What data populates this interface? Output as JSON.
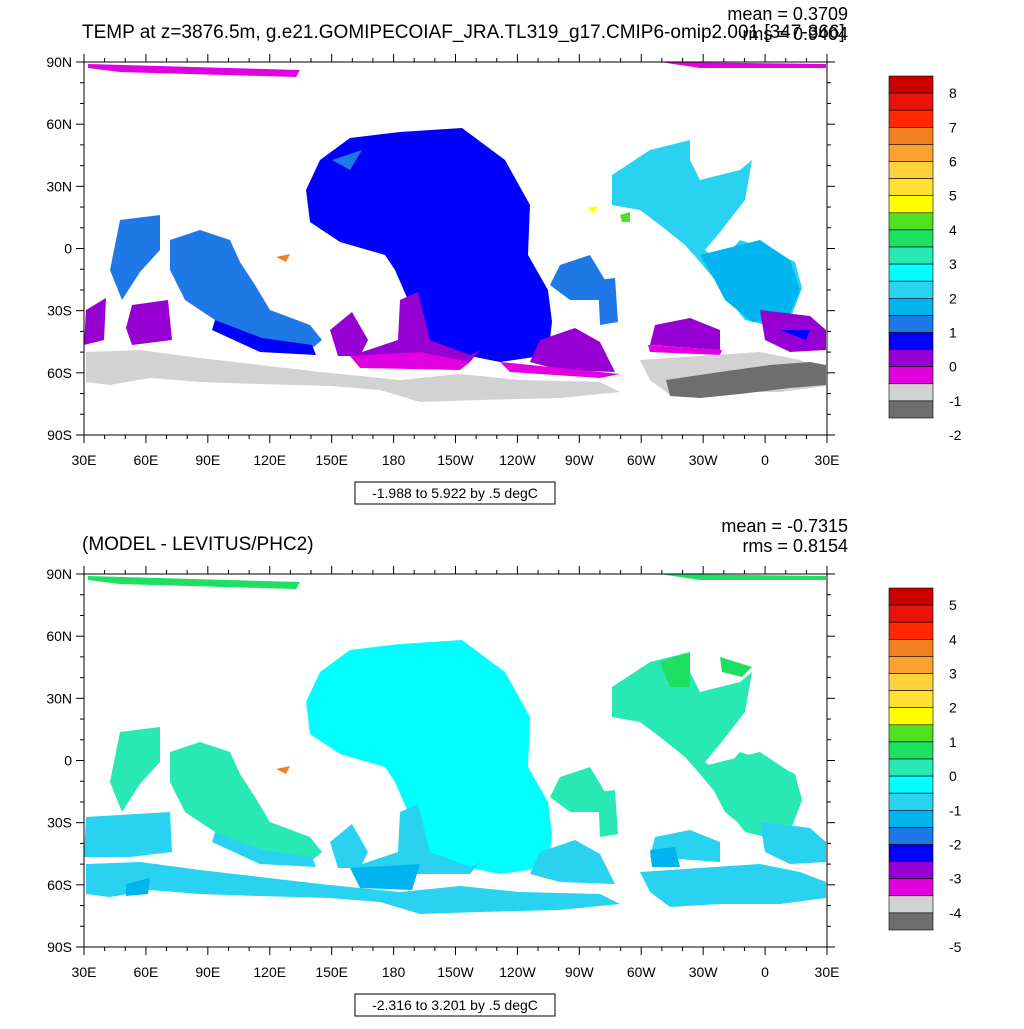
{
  "panels": [
    {
      "title": "TEMP at z=3876.5m, g.e21.GOMIPECOIAF_JRA.TL319_g17.CMIP6-omip2.001 [347-366]",
      "mean": "mean = 0.3709",
      "rms": "rms = 0.9404",
      "range": "-1.988 to 5.922 by .5 degC",
      "colorbar_labels": [
        "8",
        "7",
        "6",
        "5",
        "4",
        "3",
        "2",
        "1",
        "0",
        "-1",
        "-2"
      ],
      "colorbar_colors": [
        "#c80000",
        "#e8140c",
        "#ff2800",
        "#f08020",
        "#fca030",
        "#ffd23c",
        "#ffe030",
        "#ffff00",
        "#50e020",
        "#1ee060",
        "#28e8b4",
        "#00ffff",
        "#28d2f0",
        "#00b4f0",
        "#1e78e6",
        "#0000ff",
        "#9600d2",
        "#e000e0",
        "#d2d2d2",
        "#6e6e6e"
      ]
    },
    {
      "title": "(MODEL - LEVITUS/PHC2)",
      "mean": "mean = -0.7315",
      "rms": "rms = 0.8154",
      "range": "-2.316 to 3.201 by .5 degC",
      "colorbar_labels": [
        "5",
        "4",
        "3",
        "2",
        "1",
        "0",
        "-1",
        "-2",
        "-3",
        "-4",
        "-5"
      ],
      "colorbar_colors": [
        "#c80000",
        "#e8140c",
        "#ff2800",
        "#f08020",
        "#fca030",
        "#ffd23c",
        "#ffe030",
        "#ffff00",
        "#50e020",
        "#1ee060",
        "#28e8b4",
        "#00ffff",
        "#28d2f0",
        "#00b4f0",
        "#1e78e6",
        "#0000ff",
        "#9600d2",
        "#e000e0",
        "#d2d2d2",
        "#6e6e6e"
      ]
    }
  ],
  "axes": {
    "lat_labels": [
      "90N",
      "60N",
      "30N",
      "0",
      "30S",
      "60S",
      "90S"
    ],
    "lon_labels": [
      "30E",
      "60E",
      "90E",
      "120E",
      "150E",
      "180",
      "150W",
      "120W",
      "90W",
      "60W",
      "30W",
      "0",
      "30E"
    ]
  }
}
